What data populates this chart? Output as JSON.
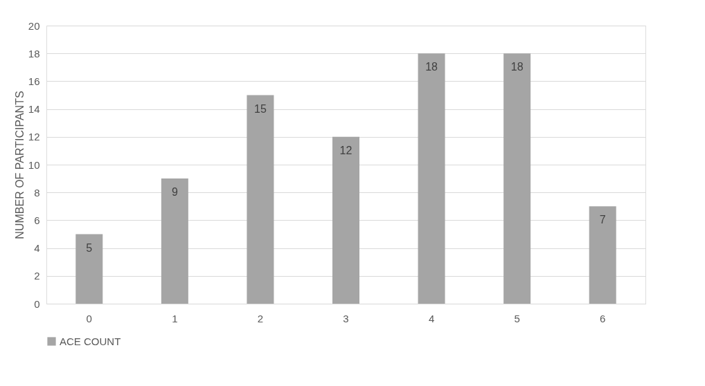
{
  "chart_data": {
    "type": "bar",
    "ylabel": "NUMBER OF PARTICIPANTS",
    "categories": [
      "0",
      "1",
      "2",
      "3",
      "4",
      "5",
      "6"
    ],
    "series": [
      {
        "name": "ACE COUNT",
        "color": "#a5a5a5",
        "values": [
          5,
          9,
          15,
          12,
          18,
          18,
          7
        ]
      }
    ],
    "ylim": [
      0,
      20
    ],
    "yticks": [
      0,
      2,
      4,
      6,
      8,
      10,
      12,
      14,
      16,
      18,
      20
    ],
    "grid": "y",
    "legend": "bottom",
    "data_labels": true
  }
}
